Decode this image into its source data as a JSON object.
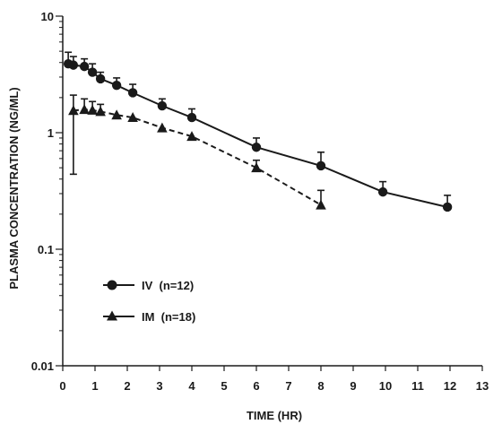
{
  "chart_data": {
    "type": "line",
    "title": "",
    "xlabel": "TIME (HR)",
    "ylabel": "PLASMA CONCENTRATION (NG/ML)",
    "xlim": [
      0,
      13
    ],
    "ylim": [
      0.01,
      10
    ],
    "yscale": "log",
    "grid": false,
    "legend_position": "lower-left",
    "x_ticks": [
      "0",
      "1",
      "2",
      "3",
      "4",
      "5",
      "6",
      "7",
      "8",
      "9",
      "10",
      "11",
      "12",
      "13"
    ],
    "y_ticks": [
      "0.01",
      "0.1",
      "1",
      "10"
    ],
    "series": [
      {
        "name": "IV  (n=12)",
        "marker": "circle",
        "line_style": "solid",
        "x": [
          0.17,
          0.33,
          0.67,
          0.92,
          1.17,
          1.67,
          2.17,
          3.08,
          4.0,
          6.0,
          8.0,
          9.92,
          11.92
        ],
        "y": [
          3.9,
          3.8,
          3.7,
          3.3,
          2.9,
          2.55,
          2.2,
          1.7,
          1.35,
          0.75,
          0.52,
          0.31,
          0.23
        ],
        "err_upper": [
          4.9,
          4.5,
          4.3,
          3.9,
          3.3,
          2.95,
          2.6,
          1.95,
          1.6,
          0.9,
          0.68,
          0.38,
          0.29
        ]
      },
      {
        "name": "IM  (n=18)",
        "marker": "triangle",
        "line_style": "dashed",
        "x": [
          0.33,
          0.67,
          0.92,
          1.17,
          1.67,
          2.17,
          3.08,
          4.0,
          6.0,
          8.0
        ],
        "y": [
          1.55,
          1.58,
          1.56,
          1.52,
          1.42,
          1.35,
          1.1,
          0.93,
          0.5,
          0.24
        ],
        "err_upper": [
          2.1,
          1.95,
          1.85,
          1.75,
          null,
          null,
          null,
          null,
          0.58,
          0.32
        ],
        "err_lower": [
          0.44,
          null,
          null,
          null,
          null,
          null,
          null,
          null,
          null,
          null
        ]
      }
    ]
  }
}
